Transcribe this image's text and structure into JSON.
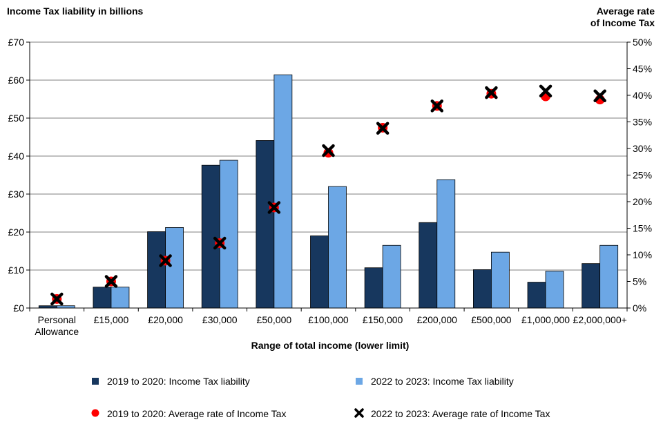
{
  "chart_data": {
    "type": "bar",
    "left_axis_title": "Income Tax liability  in billions",
    "right_axis_title_line1": "Average rate",
    "right_axis_title_line2": "of Income Tax",
    "xlabel": "Range of total income (lower limit)",
    "categories": [
      [
        "Personal",
        "Allowance"
      ],
      [
        "£15,000"
      ],
      [
        "£20,000"
      ],
      [
        "£30,000"
      ],
      [
        "£50,000"
      ],
      [
        "£100,000"
      ],
      [
        "£150,000"
      ],
      [
        "£200,000"
      ],
      [
        "£500,000"
      ],
      [
        "£1,000,000"
      ],
      [
        "£2,000,000+"
      ]
    ],
    "ylim_left": [
      0,
      70
    ],
    "ylim_right": [
      0,
      0.5
    ],
    "left_ticks": [
      "£0",
      "£10",
      "£20",
      "£30",
      "£40",
      "£50",
      "£60",
      "£70"
    ],
    "right_ticks": [
      "0%",
      "5%",
      "10%",
      "15%",
      "20%",
      "25%",
      "30%",
      "35%",
      "40%",
      "45%",
      "50%"
    ],
    "grid": true,
    "series": [
      {
        "name": "2019 to 2020: Income Tax liability",
        "kind": "bar",
        "axis": "left",
        "color": "#17375e",
        "values": [
          0.6,
          5.5,
          20.1,
          37.6,
          44.1,
          19.0,
          10.6,
          22.5,
          10.1,
          6.8,
          11.7
        ]
      },
      {
        "name": "2022 to 2023: Income Tax liability",
        "kind": "bar",
        "axis": "left",
        "color": "#6ca7e5",
        "values": [
          0.6,
          5.5,
          21.2,
          38.9,
          61.4,
          32.0,
          16.5,
          33.8,
          14.7,
          9.7,
          16.5
        ]
      },
      {
        "name": "2019 to 2020: Average rate of Income Tax",
        "kind": "marker-circle",
        "axis": "right",
        "color": "#ff0000",
        "values": [
          0.017,
          0.05,
          0.089,
          0.122,
          0.189,
          0.292,
          0.339,
          0.38,
          0.403,
          0.398,
          0.392
        ]
      },
      {
        "name": "2022 to 2023: Average rate of Income Tax",
        "kind": "marker-x",
        "axis": "right",
        "color": "#000000",
        "values": [
          0.017,
          0.05,
          0.089,
          0.122,
          0.189,
          0.296,
          0.338,
          0.38,
          0.405,
          0.408,
          0.399
        ]
      }
    ],
    "legend_placement": "bottom"
  }
}
